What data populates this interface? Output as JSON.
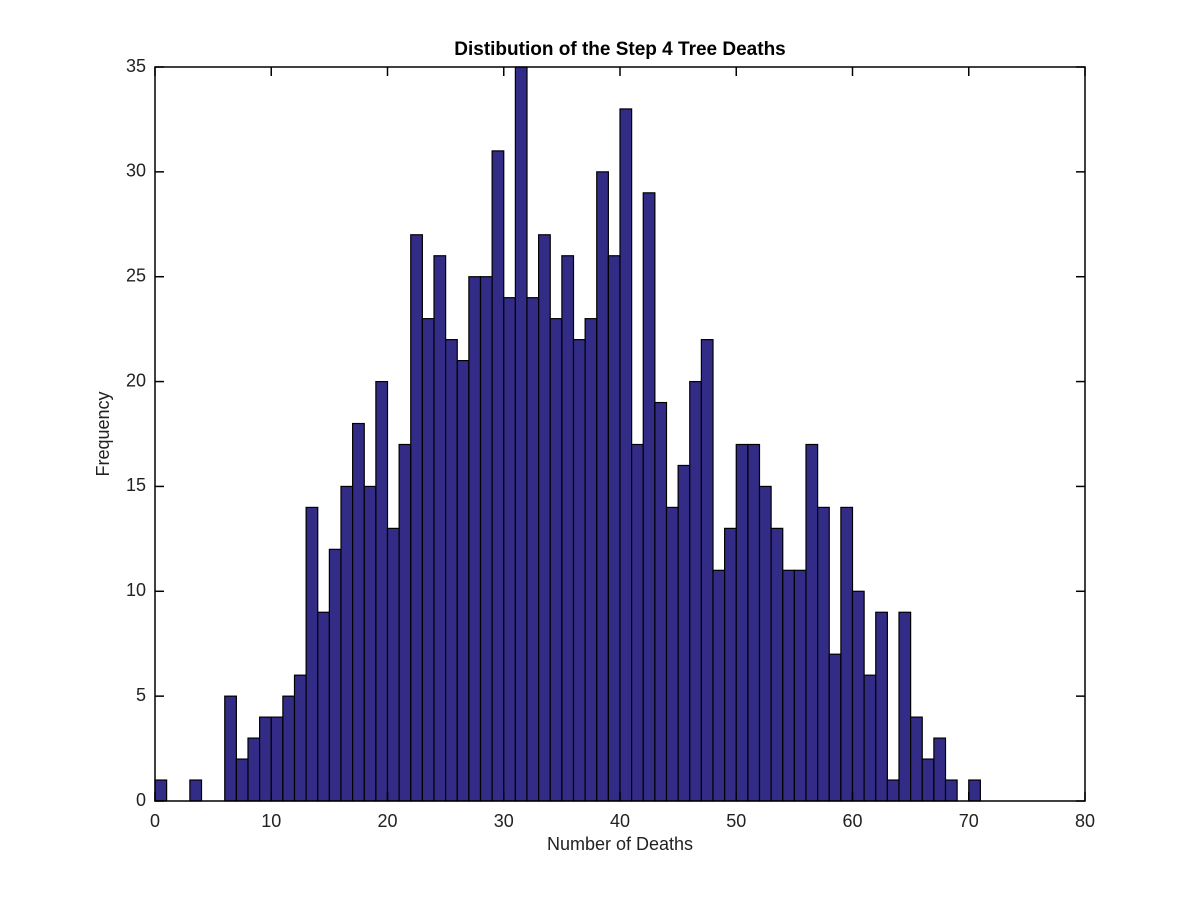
{
  "chart_data": {
    "type": "histogram",
    "title": "Distibution of the Step 4 Tree Deaths",
    "xlabel": "Number of Deaths",
    "ylabel": "Frequency",
    "bins": [
      0,
      1,
      2,
      3,
      4,
      5,
      6,
      7,
      8,
      9,
      10,
      11,
      12,
      13,
      14,
      15,
      16,
      17,
      18,
      19,
      20,
      21,
      22,
      23,
      24,
      25,
      26,
      27,
      28,
      29,
      30,
      31,
      32,
      33,
      34,
      35,
      36,
      37,
      38,
      39,
      40,
      41,
      42,
      43,
      44,
      45,
      46,
      47,
      48,
      49,
      50,
      51,
      52,
      53,
      54,
      55,
      56,
      57,
      58,
      59,
      60,
      61,
      62,
      63,
      64,
      65,
      66,
      67,
      68,
      69,
      70,
      71
    ],
    "values": [
      1,
      0,
      0,
      1,
      0,
      0,
      5,
      2,
      3,
      4,
      4,
      5,
      6,
      14,
      9,
      12,
      15,
      18,
      15,
      20,
      13,
      17,
      27,
      23,
      26,
      22,
      21,
      25,
      25,
      31,
      24,
      35,
      24,
      27,
      23,
      26,
      22,
      23,
      30,
      26,
      33,
      17,
      29,
      19,
      14,
      16,
      20,
      22,
      11,
      13,
      17,
      17,
      15,
      13,
      11,
      11,
      17,
      14,
      7,
      14,
      10,
      6,
      9,
      1,
      9,
      4,
      2,
      3,
      1,
      0,
      1
    ],
    "color": "#332c86",
    "xlim": [
      0,
      80
    ],
    "xticks": [
      0,
      10,
      20,
      30,
      40,
      50,
      60,
      70,
      80
    ],
    "ylim": [
      0,
      35
    ],
    "yticks": [
      0,
      5,
      10,
      15,
      20,
      25,
      30,
      35
    ]
  }
}
